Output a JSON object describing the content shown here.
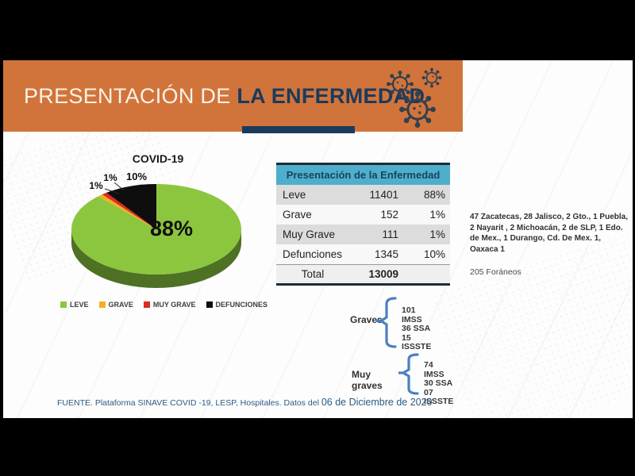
{
  "banner": {
    "title_light": "PRESENTACIÓN DE ",
    "title_bold": "LA ENFERMEDAD",
    "bg_color": "#D1743B",
    "accent_color": "#1B3A5C"
  },
  "chart_data": {
    "type": "pie",
    "style": "3d",
    "title": "COVID-19",
    "categories": [
      "LEVE",
      "GRAVE",
      "MUY GRAVE",
      "DEFUNCIONES"
    ],
    "values": [
      88,
      1,
      1,
      10
    ],
    "counts": [
      11401,
      152,
      111,
      1345
    ],
    "total": 13009,
    "colors": [
      "#8CC63F",
      "#F2B01E",
      "#E02B20",
      "#0E0E0E"
    ],
    "side_color": "#4E7123",
    "slice_labels": [
      "88%",
      "1%",
      "1%",
      "10%"
    ],
    "start_angle_deg": 0,
    "direction": "clockwise",
    "legend_position": "bottom"
  },
  "table": {
    "title": "Presentación de la Enfermedad",
    "rows": [
      {
        "label": "Leve",
        "value": "11401",
        "pct": "88%"
      },
      {
        "label": "Grave",
        "value": "152",
        "pct": "1%"
      },
      {
        "label": "Muy Grave",
        "value": "111",
        "pct": "1%"
      },
      {
        "label": "Defunciones",
        "value": "1345",
        "pct": "10%"
      }
    ],
    "total_label": "Total",
    "total_value": "13009"
  },
  "states_note": {
    "text": "47 Zacatecas, 28 Jalisco, 2 Gto., 1 Puebla, 2 Nayarit , 2 Michoacán, 2 de SLP, 1 Edo. de Mex., 1 Durango, Cd. De Mex. 1, Oaxaca 1",
    "foreign": "205 Foráneos"
  },
  "graves": {
    "label": "Graves",
    "items": [
      "101 IMSS",
      "36 SSA",
      "15 ISSSTE"
    ]
  },
  "muy_graves": {
    "label": "Muy graves",
    "items": [
      "74 IMSS",
      "30 SSA",
      "07 ISSSTE"
    ]
  },
  "footer": {
    "source": "FUENTE. Plataforma SINAVE COVID -19, LESP, Hospitales. Datos del ",
    "date": "06 de Diciembre de 2020"
  }
}
